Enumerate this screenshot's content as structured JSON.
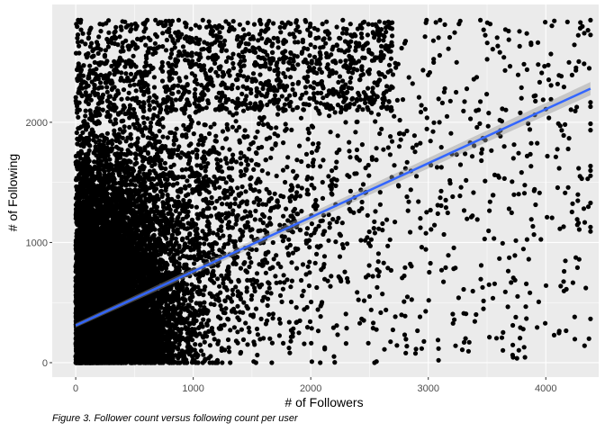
{
  "chart_data": {
    "type": "scatter",
    "xlabel": "# of Followers",
    "ylabel": "# of Following",
    "xlim": [
      -200,
      4450
    ],
    "ylim": [
      -120,
      2980
    ],
    "x_ticks": [
      0,
      1000,
      2000,
      3000,
      4000
    ],
    "y_ticks": [
      0,
      1000,
      2000
    ],
    "grid": true,
    "legend": "none",
    "panel_color": "#ebebeb",
    "grid_color": "#ffffff",
    "point_color": "#000000",
    "point_count_approx": 12000,
    "x_max_observed": 4380,
    "y_max_observed": 2850,
    "regression_line": {
      "method": "linear",
      "color": "#3366ff",
      "confidence_band": true,
      "points": [
        [
          0,
          310
        ],
        [
          4380,
          2280
        ]
      ]
    }
  },
  "caption": "Figure 3. Follower count versus following count per user"
}
